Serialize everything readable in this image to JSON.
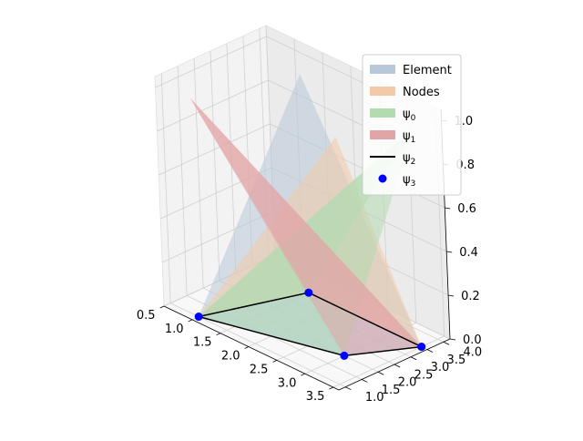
{
  "colors": {
    "element": "#b8c8d8",
    "nodes": "#f3caa8",
    "psi0": "#b3dbb0",
    "psi1": "#e2a5a7",
    "psi2": "#000000",
    "psi3": "#0000ff",
    "pane_left": "#f3f3f3",
    "pane_right": "#ebebeb",
    "pane_floor": "#f8f8f8"
  },
  "chart_data": {
    "type": "surface3d",
    "title": "",
    "xlabel": "",
    "ylabel": "",
    "zlabel": "",
    "xlim": [
      0.5,
      3.6
    ],
    "ylim": [
      0.8,
      4.2
    ],
    "zlim": [
      0.0,
      1.05
    ],
    "grid": true,
    "legend_position": "top-right",
    "x_ticks": [
      "0.5",
      "1.0",
      "1.5",
      "2.0",
      "2.5",
      "3.0",
      "3.5"
    ],
    "y_ticks": [
      "1.0",
      "1.5",
      "2.0",
      "2.5",
      "3.0",
      "3.5",
      "4.0"
    ],
    "z_ticks": [
      "0.0",
      "0.2",
      "0.4",
      "0.6",
      "0.8",
      "1.0"
    ],
    "nodes": [
      {
        "x": 1.0,
        "y": 1.0
      },
      {
        "x": 3.0,
        "y": 2.0
      },
      {
        "x": 3.5,
        "y": 3.5
      },
      {
        "x": 1.5,
        "y": 3.5
      }
    ],
    "element_edges": [
      [
        0,
        1
      ],
      [
        1,
        2
      ],
      [
        2,
        3
      ],
      [
        3,
        0
      ]
    ],
    "series": [
      {
        "name": "Element",
        "kind": "surface",
        "peak_node": null,
        "color_key": "element"
      },
      {
        "name": "Nodes",
        "kind": "surface",
        "peak_node": 1,
        "color_key": "nodes"
      },
      {
        "name": "ψ",
        "sub": "0",
        "kind": "surface",
        "peak_node": 2,
        "color_key": "psi0"
      },
      {
        "name": "ψ",
        "sub": "1",
        "kind": "surface",
        "peak_node": 0,
        "color_key": "psi1"
      },
      {
        "name": "ψ",
        "sub": "2",
        "kind": "line",
        "color_key": "psi2"
      },
      {
        "name": "ψ",
        "sub": "3",
        "kind": "markers",
        "color_key": "psi3"
      }
    ],
    "extra_surface": {
      "name": "",
      "peak_node": 3,
      "color_key": "element"
    }
  }
}
